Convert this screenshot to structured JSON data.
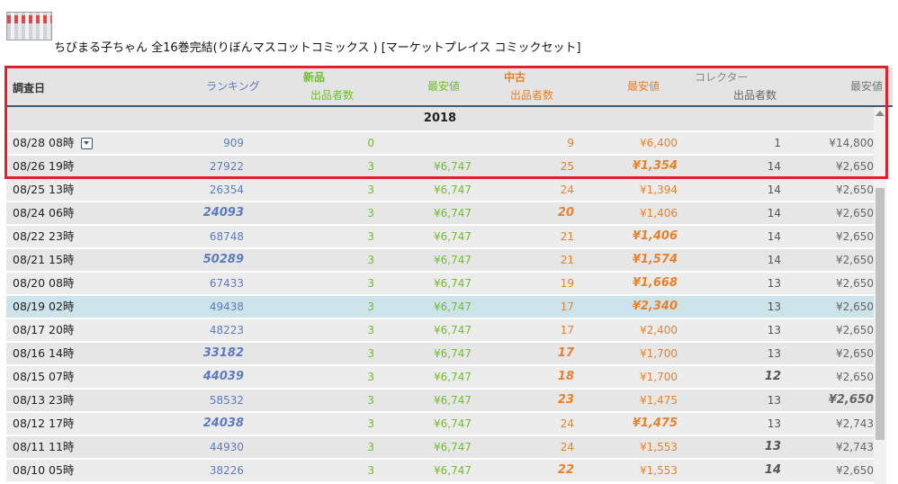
{
  "product": {
    "title": "ちびまる子ちゃん 全16巻完結(りぼんマスコットコミックス ) [マーケットプレイス コミックセット]",
    "thumbnail_icon": "comic-set-thumbnail"
  },
  "table": {
    "headers": {
      "date": "調査日",
      "ranking": "ランキング",
      "new": "新品",
      "new_count": "出品者数",
      "new_low": "最安値",
      "used": "中古",
      "used_count": "出品者数",
      "used_low": "最安値",
      "collector": "コレクター",
      "collector_count": "出品者数",
      "collector_low": "最安値"
    },
    "year": "2018",
    "rows": [
      {
        "date": "08/28 08時",
        "rank": "909",
        "new_count": "0",
        "new_low": "",
        "used_count": "9",
        "used_low": "¥6,400",
        "col_count": "1",
        "col_low": "¥14,800"
      },
      {
        "date": "08/26 19時",
        "rank": "27922",
        "new_count": "3",
        "new_low": "¥6,747",
        "used_count": "25",
        "used_low": "¥1,354",
        "col_count": "14",
        "col_low": "¥2,650"
      },
      {
        "date": "08/25 13時",
        "rank": "26354",
        "new_count": "3",
        "new_low": "¥6,747",
        "used_count": "24",
        "used_low": "¥1,394",
        "col_count": "14",
        "col_low": "¥2,650"
      },
      {
        "date": "08/24 06時",
        "rank": "24093",
        "new_count": "3",
        "new_low": "¥6,747",
        "used_count": "20",
        "used_low": "¥1,406",
        "col_count": "14",
        "col_low": "¥2,650"
      },
      {
        "date": "08/22 23時",
        "rank": "68748",
        "new_count": "3",
        "new_low": "¥6,747",
        "used_count": "21",
        "used_low": "¥1,406",
        "col_count": "14",
        "col_low": "¥2,650"
      },
      {
        "date": "08/21 15時",
        "rank": "50289",
        "new_count": "3",
        "new_low": "¥6,747",
        "used_count": "21",
        "used_low": "¥1,574",
        "col_count": "14",
        "col_low": "¥2,650"
      },
      {
        "date": "08/20 08時",
        "rank": "67433",
        "new_count": "3",
        "new_low": "¥6,747",
        "used_count": "19",
        "used_low": "¥1,668",
        "col_count": "13",
        "col_low": "¥2,650"
      },
      {
        "date": "08/19 02時",
        "rank": "49438",
        "new_count": "3",
        "new_low": "¥6,747",
        "used_count": "17",
        "used_low": "¥2,340",
        "col_count": "13",
        "col_low": "¥2,650"
      },
      {
        "date": "08/17 20時",
        "rank": "48223",
        "new_count": "3",
        "new_low": "¥6,747",
        "used_count": "17",
        "used_low": "¥2,400",
        "col_count": "13",
        "col_low": "¥2,650"
      },
      {
        "date": "08/16 14時",
        "rank": "33182",
        "new_count": "3",
        "new_low": "¥6,747",
        "used_count": "17",
        "used_low": "¥1,700",
        "col_count": "13",
        "col_low": "¥2,650"
      },
      {
        "date": "08/15 07時",
        "rank": "44039",
        "new_count": "3",
        "new_low": "¥6,747",
        "used_count": "18",
        "used_low": "¥1,700",
        "col_count": "12",
        "col_low": "¥2,650"
      },
      {
        "date": "08/13 23時",
        "rank": "58532",
        "new_count": "3",
        "new_low": "¥6,747",
        "used_count": "23",
        "used_low": "¥1,475",
        "col_count": "13",
        "col_low": "¥2,650"
      },
      {
        "date": "08/12 17時",
        "rank": "24038",
        "new_count": "3",
        "new_low": "¥6,747",
        "used_count": "24",
        "used_low": "¥1,475",
        "col_count": "13",
        "col_low": "¥2,743"
      },
      {
        "date": "08/11 11時",
        "rank": "44930",
        "new_count": "3",
        "new_low": "¥6,747",
        "used_count": "24",
        "used_low": "¥1,553",
        "col_count": "13",
        "col_low": "¥2,743"
      },
      {
        "date": "08/10 05時",
        "rank": "38226",
        "new_count": "3",
        "new_low": "¥6,747",
        "used_count": "22",
        "used_low": "¥1,553",
        "col_count": "14",
        "col_low": "¥2,650"
      }
    ]
  },
  "colors": {
    "ranking": "#5d7bc1",
    "new": "#6fbf2a",
    "used": "#e8812a",
    "collector": "#888888",
    "highlight_box": "#e0202a",
    "highlight_row": "#cde3ea"
  }
}
